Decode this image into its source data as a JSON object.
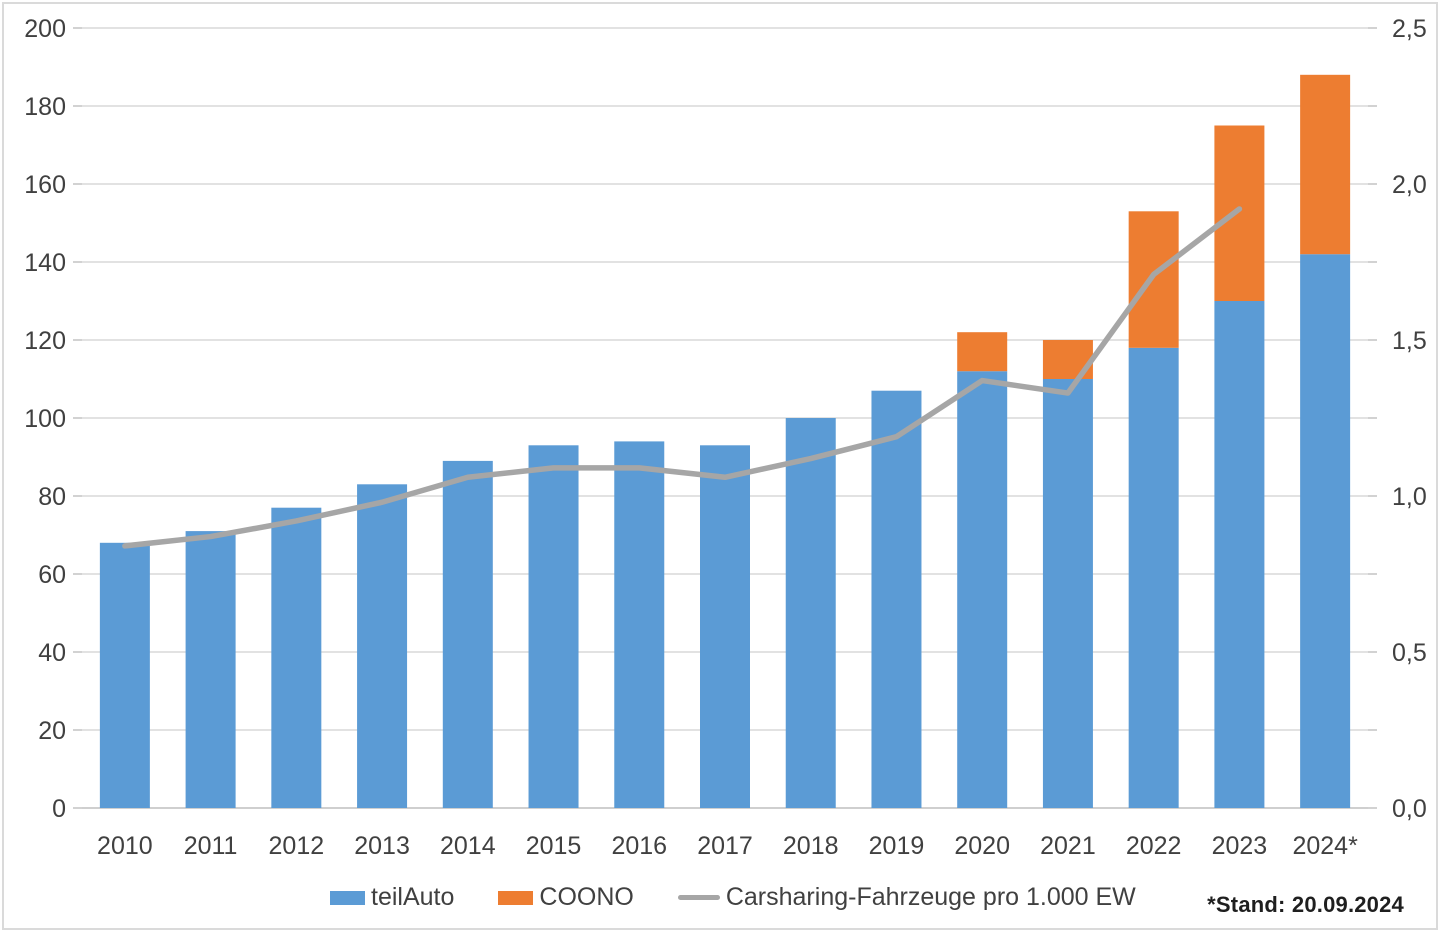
{
  "chart_data": {
    "type": "combo-bar-line",
    "title": "",
    "categories": [
      "2010",
      "2011",
      "2012",
      "2013",
      "2014",
      "2015",
      "2016",
      "2017",
      "2018",
      "2019",
      "2020",
      "2021",
      "2022",
      "2023",
      "2024*"
    ],
    "series": [
      {
        "name": "teilAuto",
        "type": "bar",
        "stacked": true,
        "axis": "left",
        "color_key": "teilauto",
        "values": [
          68,
          71,
          77,
          83,
          89,
          93,
          94,
          93,
          100,
          107,
          112,
          110,
          118,
          130,
          142
        ]
      },
      {
        "name": "COONO",
        "type": "bar",
        "stacked": true,
        "axis": "left",
        "color_key": "coono",
        "values": [
          0,
          0,
          0,
          0,
          0,
          0,
          0,
          0,
          0,
          0,
          10,
          10,
          35,
          45,
          46
        ]
      },
      {
        "name": "Carsharing-Fahrzeuge pro 1.000 EW",
        "type": "line",
        "axis": "right",
        "color_key": "line",
        "values": [
          0.84,
          0.87,
          0.92,
          0.98,
          1.06,
          1.09,
          1.09,
          1.06,
          1.12,
          1.19,
          1.37,
          1.33,
          1.71,
          1.92,
          null
        ]
      }
    ],
    "left_axis": {
      "min": 0,
      "max": 200,
      "ticks": [
        0,
        20,
        40,
        60,
        80,
        100,
        120,
        140,
        160,
        180,
        200
      ]
    },
    "right_axis": {
      "min": 0,
      "max": 2.5,
      "ticks": [
        {
          "value": 0,
          "label": "0,0"
        },
        {
          "value": 0.5,
          "label": "0,5"
        },
        {
          "value": 1,
          "label": "1,0"
        },
        {
          "value": 1.5,
          "label": "1,5"
        },
        {
          "value": 2,
          "label": "2,0"
        },
        {
          "value": 2.5,
          "label": "2,5"
        }
      ]
    },
    "grid": true,
    "legend_position": "bottom"
  },
  "legend": {
    "items": [
      {
        "label": "teilAuto"
      },
      {
        "label": "COONO"
      },
      {
        "label": "Carsharing-Fahrzeuge pro 1.000 EW"
      }
    ]
  },
  "footnote": "*Stand: 20.09.2024",
  "colors": {
    "teilauto": "#5B9BD5",
    "coono": "#ED7D31",
    "line": "#A6A6A6",
    "gridline": "#D9D9D9",
    "axis_line": "#BFBFBF",
    "text": "#404040"
  }
}
